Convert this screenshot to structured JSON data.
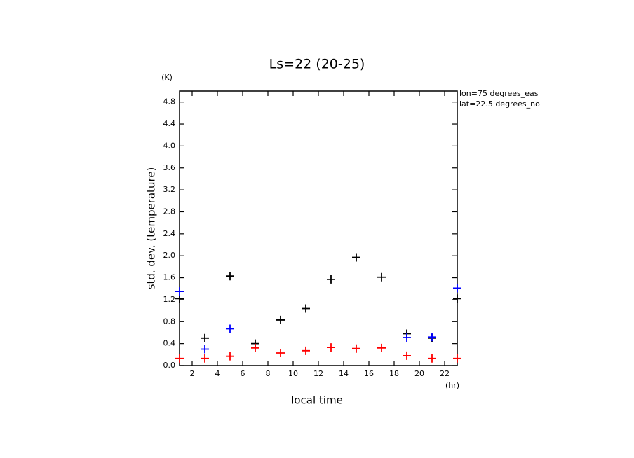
{
  "chart_data": {
    "type": "scatter",
    "title": "Ls=22 (20-25)",
    "y_unit": "(K)",
    "x_unit": "(hr)",
    "y_label": "std. dev. (temperature)",
    "x_label": "local time",
    "annotations": [
      "lon=75 degrees_eas",
      "lat=22.5 degrees_no"
    ],
    "x": [
      1,
      3,
      5,
      7,
      9,
      11,
      13,
      15,
      17,
      19,
      21,
      23
    ],
    "series": [
      {
        "color": "#000000",
        "values": [
          1.22,
          0.5,
          1.63,
          0.4,
          0.83,
          1.04,
          1.57,
          1.97,
          1.61,
          0.58,
          0.5,
          1.22
        ]
      },
      {
        "color": "#0000ff",
        "values": [
          1.35,
          0.3,
          0.67,
          null,
          null,
          null,
          null,
          null,
          null,
          0.51,
          0.52,
          1.41
        ]
      },
      {
        "color": "#ff0000",
        "values": [
          0.13,
          0.13,
          0.17,
          0.32,
          0.23,
          0.27,
          0.33,
          0.31,
          0.32,
          0.18,
          0.13,
          0.13
        ]
      }
    ],
    "xlim": [
      1,
      23
    ],
    "ylim": [
      0,
      5
    ],
    "xticks": [
      2,
      4,
      6,
      8,
      10,
      12,
      14,
      16,
      18,
      20,
      22
    ],
    "yticks": [
      {
        "value": 0,
        "label": "0.0"
      },
      0.4,
      0.8,
      1.2,
      1.6,
      {
        "value": 2,
        "label": "2.0"
      },
      2.4,
      2.8,
      3.2,
      3.6,
      {
        "value": 4,
        "label": "4.0"
      },
      4.4,
      4.8
    ]
  }
}
